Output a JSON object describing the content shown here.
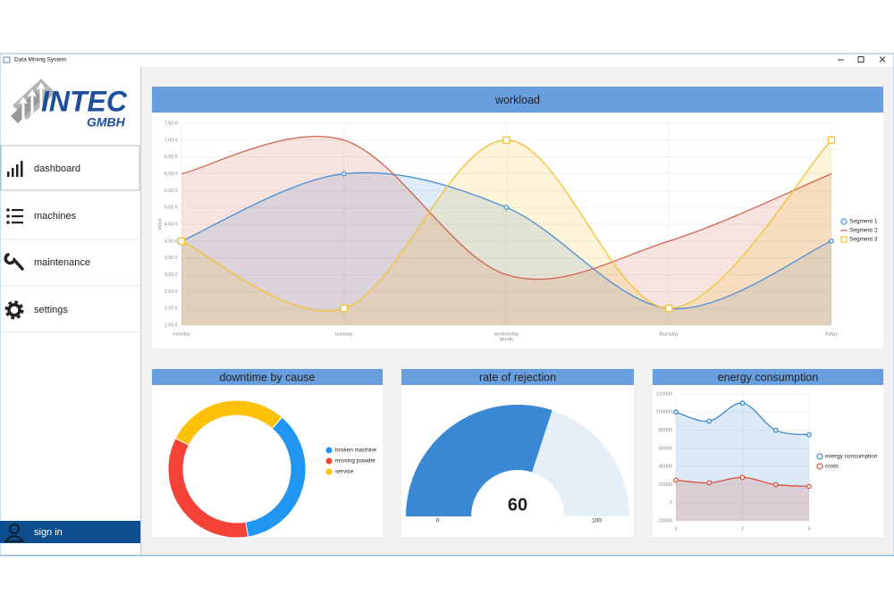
{
  "window": {
    "title": "Data Mining System"
  },
  "sidebar": {
    "logo": {
      "name": "INTEC",
      "suffix": "GMBH"
    },
    "nav": [
      "dashboard",
      "machines",
      "maintenance",
      "settings"
    ],
    "sign_in": "sign in"
  },
  "chart_data": [
    {
      "type": "line",
      "title": "workload",
      "x_label": "Month",
      "y_label": "Value",
      "categories": [
        "monday",
        "tuesday",
        "wednesday",
        "thursday",
        "friday"
      ],
      "smooth": true,
      "area": true,
      "series": [
        {
          "name": "Segment 1",
          "color": "#4a8fd6",
          "marker": "circle",
          "values": [
            4,
            6,
            5,
            2,
            4
          ]
        },
        {
          "name": "Segment 2",
          "color": "#d26350",
          "marker": "none",
          "values": [
            6,
            7,
            3,
            4,
            6
          ]
        },
        {
          "name": "Segment 3",
          "color": "#f2c230",
          "marker": "square",
          "values": [
            4,
            2,
            7,
            2,
            7
          ]
        }
      ],
      "ylim": [
        1.5,
        7.5
      ],
      "yticks": [
        {
          "value": 1.5,
          "label": "1,50 €"
        },
        {
          "value": 2,
          "label": "2,00 €"
        },
        {
          "value": 2.5,
          "label": "2,50 €"
        },
        {
          "value": 3,
          "label": "3,00 €"
        },
        {
          "value": 3.5,
          "label": "3,50 €"
        },
        {
          "value": 4,
          "label": "4,00 €"
        },
        {
          "value": 4.5,
          "label": "4,50 €"
        },
        {
          "value": 5,
          "label": "5,00 €"
        },
        {
          "value": 5.5,
          "label": "5,50 €"
        },
        {
          "value": 6,
          "label": "6,00 €"
        },
        {
          "value": 6.5,
          "label": "6,50 €"
        },
        {
          "value": 7,
          "label": "7,00 €"
        },
        {
          "value": 7.5,
          "label": "7,50 €"
        }
      ],
      "grid": true,
      "legend": "right"
    },
    {
      "type": "donut",
      "title": "downtime by cause",
      "categories": [
        "broken machine",
        "missing powder",
        "service"
      ],
      "values": [
        36,
        35,
        29
      ],
      "colors": [
        "#2196f3",
        "#f44336",
        "#ffc107"
      ],
      "legend": "right"
    },
    {
      "type": "gauge",
      "title": "rate of rejection",
      "value": 60,
      "min": 0,
      "max": 100,
      "color": "#3a87d4",
      "track_color": "#e6eef8"
    },
    {
      "type": "line",
      "title": "energy consumption",
      "x": [
        0,
        1,
        2,
        3,
        4
      ],
      "xlim": [
        0,
        4
      ],
      "xticks": [
        0,
        2,
        4
      ],
      "smooth": true,
      "area": true,
      "series": [
        {
          "name": "energy consumption",
          "color": "#3b89d0",
          "marker": "circle",
          "values": [
            100000,
            90000,
            110000,
            80000,
            75000
          ]
        },
        {
          "name": "costs",
          "color": "#d9533f",
          "marker": "circle",
          "values": [
            25000,
            22000,
            28000,
            20000,
            18000
          ]
        }
      ],
      "ylim": [
        -20000,
        120000
      ],
      "yticks": [
        -20000,
        0,
        20000,
        40000,
        60000,
        80000,
        100000,
        120000
      ],
      "grid": true,
      "legend": "right"
    }
  ]
}
